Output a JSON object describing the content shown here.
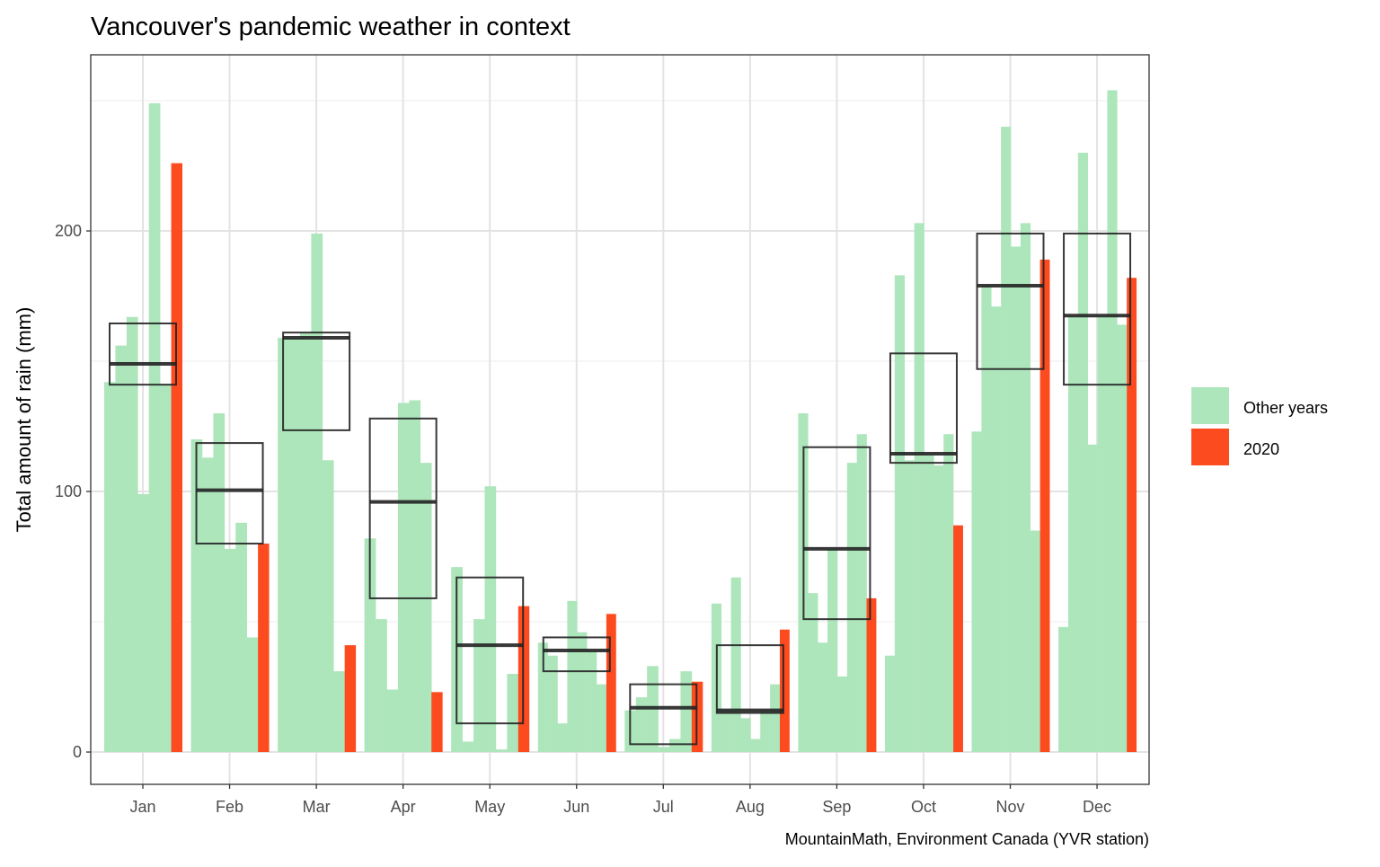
{
  "chart_data": {
    "type": "bar",
    "title": "Vancouver's pandemic weather in context",
    "xlabel": "",
    "ylabel": "Total amount of rain (mm)",
    "caption": "MountainMath, Environment Canada (YVR station)",
    "ylim": [
      -12.4,
      267.6
    ],
    "yticks": [
      0,
      100,
      200
    ],
    "yminor": [
      50,
      150,
      250
    ],
    "grid": true,
    "legend_position": "right",
    "legend": [
      {
        "label": "Other years",
        "color": "#aee6bc"
      },
      {
        "label": "2020",
        "color": "#fd4b20"
      }
    ],
    "categories": [
      "Jan",
      "Feb",
      "Mar",
      "Apr",
      "May",
      "Jun",
      "Jul",
      "Aug",
      "Sep",
      "Oct",
      "Nov",
      "Dec"
    ],
    "other_years": [
      [
        142,
        156,
        167,
        99,
        249,
        141
      ],
      [
        120,
        113,
        130,
        78,
        88,
        44
      ],
      [
        159,
        159,
        161,
        199,
        112,
        31
      ],
      [
        82,
        51,
        24,
        134,
        135,
        111
      ],
      [
        71,
        4,
        51,
        102,
        1,
        30
      ],
      [
        42,
        37,
        11,
        58,
        46,
        39,
        26
      ],
      [
        16,
        21,
        33,
        2,
        5,
        31
      ],
      [
        57,
        16,
        67,
        13,
        5,
        16,
        26
      ],
      [
        130,
        61,
        42,
        78,
        29,
        111,
        122
      ],
      [
        37,
        183,
        112,
        203,
        114,
        110,
        122
      ],
      [
        123,
        179,
        171,
        240,
        194,
        203,
        85
      ],
      [
        48,
        167,
        230,
        118,
        167,
        254,
        164
      ]
    ],
    "year_2020": [
      226,
      80,
      41,
      23,
      56,
      53,
      27,
      47,
      59,
      87,
      189,
      182
    ],
    "box_stats": {
      "q1": [
        141,
        80,
        123.5,
        59,
        11,
        31,
        3,
        15,
        51,
        111,
        147,
        141
      ],
      "median": [
        149,
        100.5,
        159,
        96,
        41,
        39,
        17,
        16,
        78,
        114.5,
        179,
        167.5
      ],
      "q3": [
        164.5,
        118.6,
        161,
        128,
        67,
        44,
        26,
        41,
        117,
        153,
        199,
        199
      ]
    }
  }
}
